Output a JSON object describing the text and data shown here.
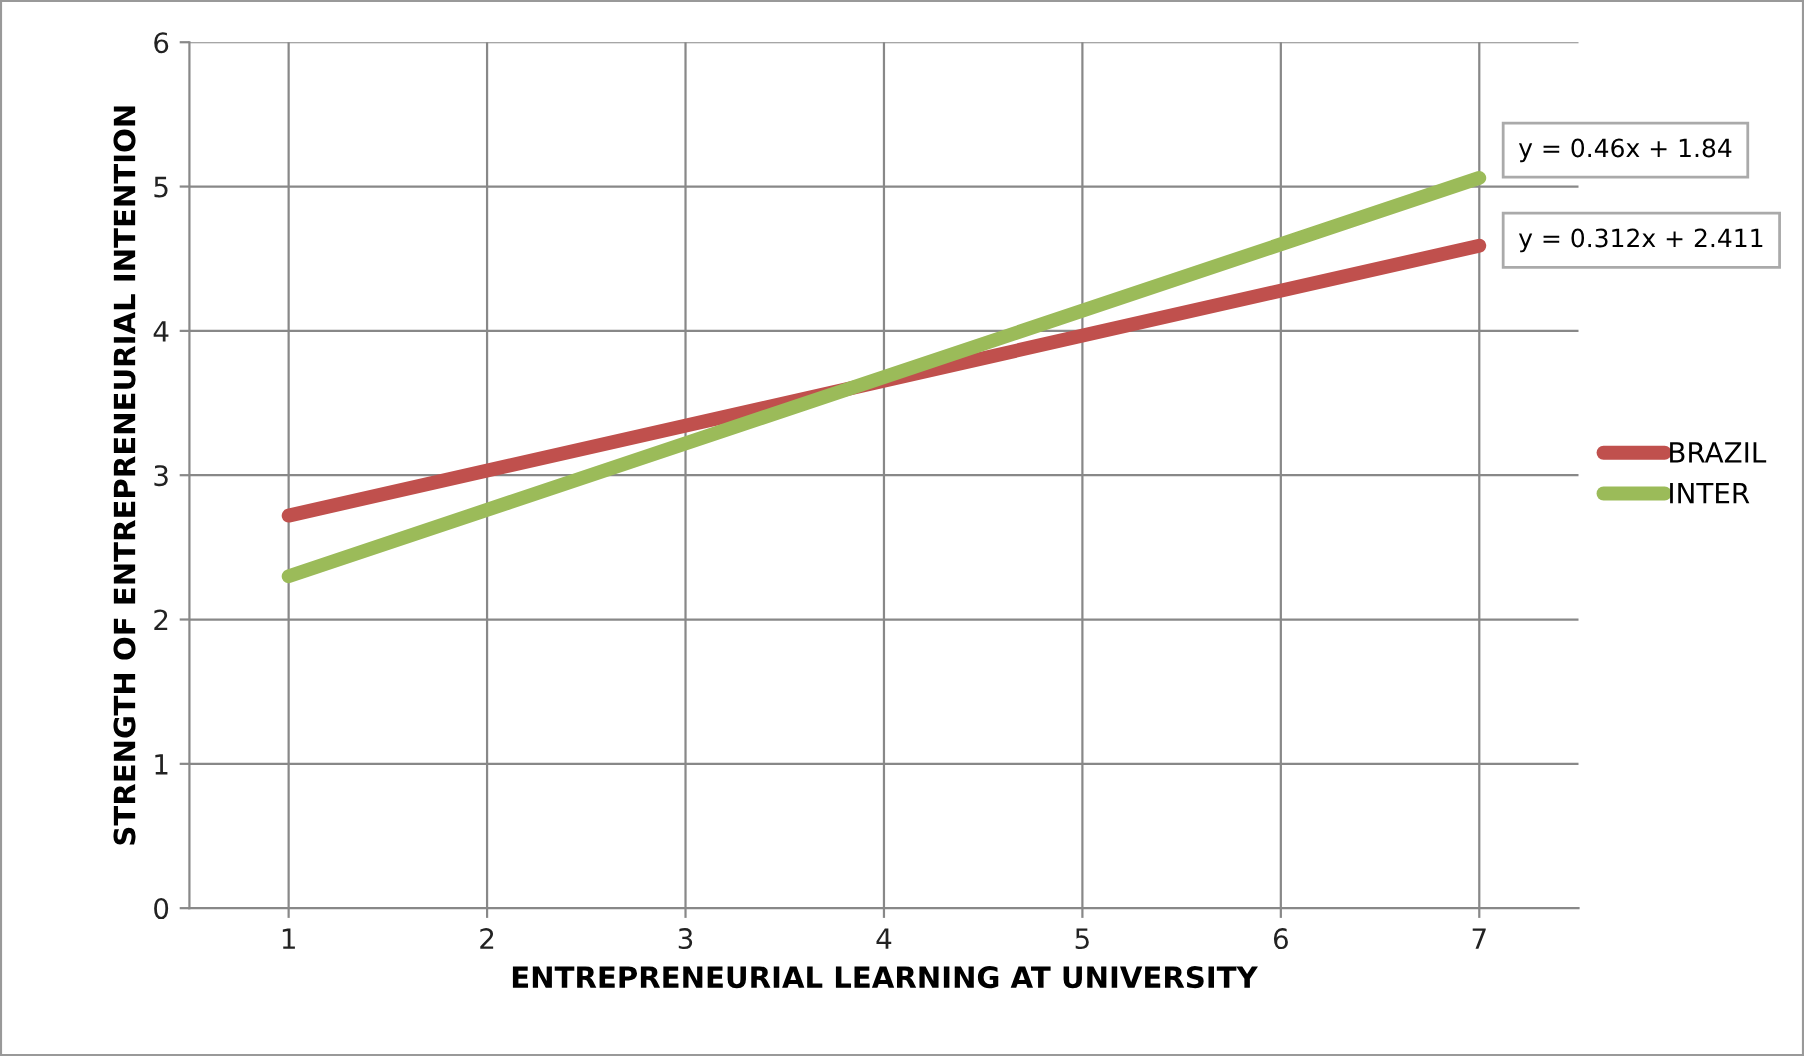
{
  "chart_data": {
    "type": "line",
    "xlabel": "ENTREPRENEURIAL LEARNING AT UNIVERSITY",
    "ylabel": "STRENGTH OF ENTREPRENEURIAL INTENTION",
    "x": [
      1,
      7
    ],
    "series": [
      {
        "name": "BRAZIL",
        "color": "#c0504d",
        "values": [
          2.72,
          4.59
        ]
      },
      {
        "name": "INTER",
        "color": "#9bbb59",
        "values": [
          2.3,
          5.06
        ]
      }
    ],
    "xlim": [
      0.5,
      7.5
    ],
    "xticks": [
      1,
      2,
      3,
      4,
      5,
      6,
      7
    ],
    "ylim": [
      0,
      6
    ],
    "yticks": [
      0,
      1,
      2,
      3,
      4,
      5,
      6
    ],
    "grid": true,
    "legend": "right",
    "marker": "none",
    "line_style": "solid",
    "annotations": [
      {
        "text": "y = 0.46x + 1.84",
        "x": 7,
        "y": 5.06
      },
      {
        "text": "y = 0.312x + 2.411",
        "x": 7,
        "y": 4.59
      }
    ]
  }
}
